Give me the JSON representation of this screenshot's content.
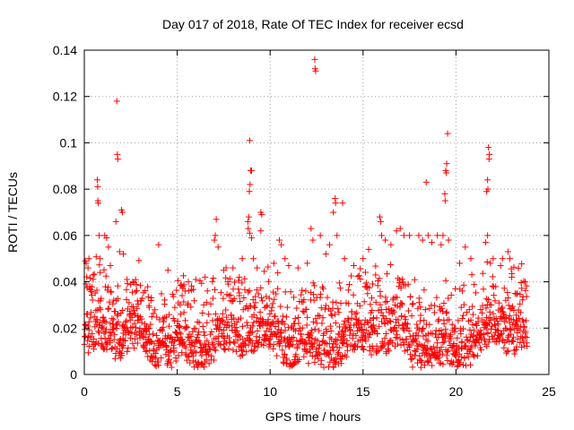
{
  "chart_data": {
    "type": "scatter",
    "title": "Day 017 of 2018, Rate Of TEC Index for receiver ecsd",
    "xlabel": "GPS time / hours",
    "ylabel": "ROTI / TECUs",
    "xlim": [
      0,
      25
    ],
    "ylim": [
      0,
      0.14
    ],
    "x_ticks": [
      0,
      5,
      10,
      15,
      20,
      25
    ],
    "y_ticks": [
      0,
      0.02,
      0.04,
      0.06,
      0.08,
      0.1,
      0.12,
      0.14
    ],
    "x_tick_labels": [
      "0",
      "5",
      "10",
      "15",
      "20",
      "25"
    ],
    "y_tick_labels": [
      "0",
      "0.02",
      "0.04",
      "0.06",
      "0.08",
      "0.1",
      "0.12",
      "0.14"
    ],
    "grid": true,
    "marker": "plus",
    "series": [
      {
        "name": "ROTI",
        "color": "#ff0000",
        "points": [
          [
            0.05,
            0.049
          ],
          [
            0.1,
            0.048
          ],
          [
            0.2,
            0.046
          ],
          [
            0.25,
            0.05
          ],
          [
            0.3,
            0.038
          ],
          [
            0.7,
            0.084
          ],
          [
            0.72,
            0.081
          ],
          [
            0.73,
            0.075
          ],
          [
            0.75,
            0.074
          ],
          [
            0.8,
            0.06
          ],
          [
            0.85,
            0.05
          ],
          [
            1.1,
            0.06
          ],
          [
            1.2,
            0.059
          ],
          [
            1.3,
            0.055
          ],
          [
            1.4,
            0.047
          ],
          [
            1.75,
            0.118
          ],
          [
            1.78,
            0.095
          ],
          [
            1.8,
            0.093
          ],
          [
            1.7,
            0.066
          ],
          [
            1.9,
            0.053
          ],
          [
            2.0,
            0.071
          ],
          [
            2.05,
            0.07
          ],
          [
            2.1,
            0.052
          ],
          [
            2.3,
            0.041
          ],
          [
            2.6,
            0.04
          ],
          [
            4.0,
            0.056
          ],
          [
            4.5,
            0.045
          ],
          [
            5.3,
            0.038
          ],
          [
            5.6,
            0.04
          ],
          [
            6.0,
            0.041
          ],
          [
            6.5,
            0.042
          ],
          [
            7.1,
            0.067
          ],
          [
            7.05,
            0.06
          ],
          [
            7.0,
            0.058
          ],
          [
            7.2,
            0.055
          ],
          [
            7.5,
            0.045
          ],
          [
            8.0,
            0.046
          ],
          [
            8.5,
            0.05
          ],
          [
            8.9,
            0.101
          ],
          [
            8.95,
            0.088
          ],
          [
            9.0,
            0.088
          ],
          [
            8.92,
            0.082
          ],
          [
            8.88,
            0.079
          ],
          [
            8.85,
            0.068
          ],
          [
            8.8,
            0.066
          ],
          [
            8.82,
            0.063
          ],
          [
            8.9,
            0.061
          ],
          [
            9.0,
            0.059
          ],
          [
            9.1,
            0.05
          ],
          [
            9.5,
            0.07
          ],
          [
            9.55,
            0.069
          ],
          [
            9.5,
            0.062
          ],
          [
            9.3,
            0.046
          ],
          [
            10.2,
            0.048
          ],
          [
            10.5,
            0.058
          ],
          [
            10.6,
            0.056
          ],
          [
            10.8,
            0.05
          ],
          [
            11.0,
            0.047
          ],
          [
            11.5,
            0.046
          ],
          [
            12.0,
            0.048
          ],
          [
            12.4,
            0.136
          ],
          [
            12.42,
            0.132
          ],
          [
            12.45,
            0.131
          ],
          [
            12.2,
            0.063
          ],
          [
            12.3,
            0.058
          ],
          [
            12.7,
            0.06
          ],
          [
            13.0,
            0.052
          ],
          [
            13.2,
            0.056
          ],
          [
            13.5,
            0.076
          ],
          [
            13.52,
            0.074
          ],
          [
            13.4,
            0.07
          ],
          [
            13.9,
            0.074
          ],
          [
            13.6,
            0.06
          ],
          [
            14.0,
            0.05
          ],
          [
            14.5,
            0.047
          ],
          [
            15.0,
            0.05
          ],
          [
            15.3,
            0.054
          ],
          [
            15.9,
            0.068
          ],
          [
            15.95,
            0.066
          ],
          [
            16.0,
            0.06
          ],
          [
            16.2,
            0.058
          ],
          [
            16.5,
            0.056
          ],
          [
            16.8,
            0.062
          ],
          [
            17.0,
            0.063
          ],
          [
            17.2,
            0.06
          ],
          [
            17.5,
            0.06
          ],
          [
            18.0,
            0.06
          ],
          [
            18.2,
            0.058
          ],
          [
            18.4,
            0.083
          ],
          [
            18.5,
            0.06
          ],
          [
            18.7,
            0.057
          ],
          [
            19.0,
            0.06
          ],
          [
            19.2,
            0.056
          ],
          [
            19.55,
            0.104
          ],
          [
            19.5,
            0.091
          ],
          [
            19.45,
            0.088
          ],
          [
            19.48,
            0.087
          ],
          [
            19.4,
            0.078
          ],
          [
            19.42,
            0.075
          ],
          [
            19.3,
            0.06
          ],
          [
            19.6,
            0.058
          ],
          [
            20.5,
            0.055
          ],
          [
            20.2,
            0.048
          ],
          [
            20.8,
            0.05
          ],
          [
            21.75,
            0.098
          ],
          [
            21.8,
            0.095
          ],
          [
            21.78,
            0.093
          ],
          [
            21.7,
            0.084
          ],
          [
            21.72,
            0.08
          ],
          [
            21.65,
            0.079
          ],
          [
            21.7,
            0.06
          ],
          [
            21.6,
            0.057
          ],
          [
            21.85,
            0.048
          ],
          [
            22.0,
            0.05
          ],
          [
            22.5,
            0.05
          ],
          [
            22.8,
            0.053
          ],
          [
            22.9,
            0.05
          ],
          [
            23.0,
            0.042
          ],
          [
            23.3,
            0.035
          ]
        ]
      }
    ]
  }
}
